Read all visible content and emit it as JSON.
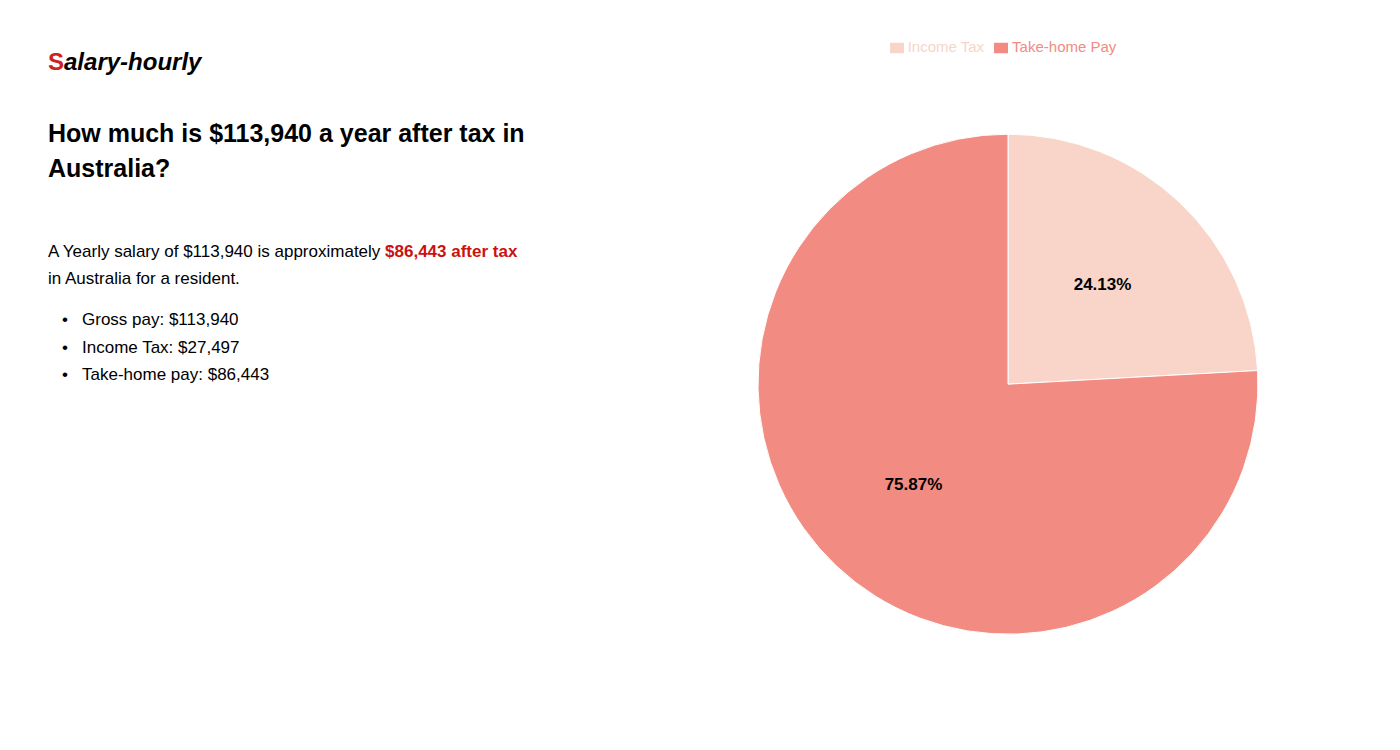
{
  "chart_data": {
    "type": "pie",
    "title": "How much is $113,940 a year after tax in\nAustralia?",
    "categories": [
      "Income Tax",
      "Take-home Pay"
    ],
    "values": [
      24.13,
      75.87
    ],
    "value_labels": [
      "24.13%",
      "75.87%"
    ],
    "colors": [
      "#f8d5c8",
      "#f28b82"
    ],
    "data_labels": true,
    "legend": "top",
    "annotations": {
      "logo": [
        {
          "text": "S",
          "color": "#cc2222"
        },
        {
          "text": "alary-hourly"
        }
      ],
      "summary": [
        [
          {
            "text": "A Yearly salary of $113,940 is approximately "
          },
          {
            "text": "$86,443 after tax",
            "color": "#cc1111"
          }
        ],
        [
          {
            "text": "in Australia for a resident."
          }
        ]
      ],
      "bullet": "•",
      "bullets": [
        "Gross pay: $113,940",
        "Income Tax: $27,497",
        "Take-home pay: $86,443"
      ]
    }
  }
}
